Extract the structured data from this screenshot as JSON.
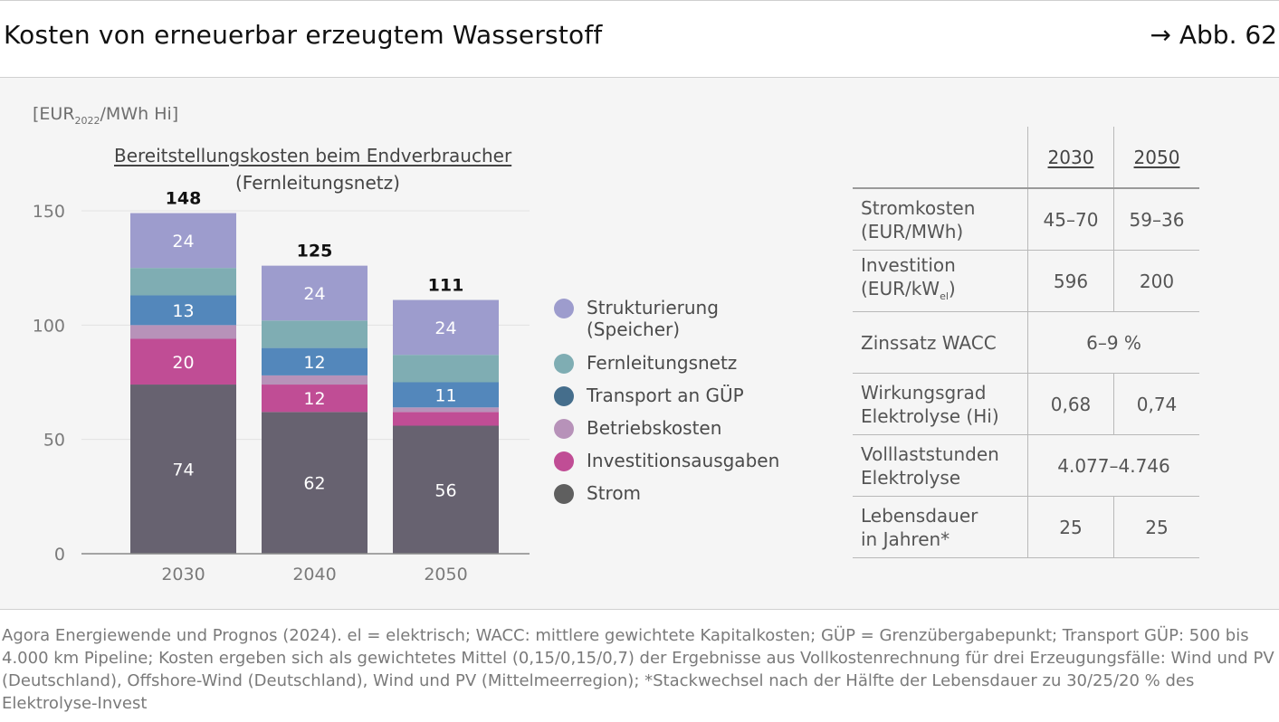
{
  "header": {
    "title": "Kosten von erneuerbar erzeugtem Wasserstoff",
    "figure_ref": "→ Abb. 62"
  },
  "unit": {
    "prefix": "[EUR",
    "sub": "2022",
    "suffix": "/MWh Hi]"
  },
  "chart_data": {
    "type": "bar",
    "stacked": true,
    "title": "Bereitstellungskosten beim Endverbraucher",
    "subtitle": "(Fernleitungsnetz)",
    "ylabel": "[EUR2022/MWh Hi]",
    "ylim": [
      0,
      150
    ],
    "yticks": [
      0,
      50,
      100,
      150
    ],
    "categories": [
      "2030",
      "2040",
      "2050"
    ],
    "totals": [
      "148",
      "125",
      "111"
    ],
    "series": [
      {
        "name": "Strom",
        "color": "#676270",
        "values": [
          74,
          62,
          56
        ],
        "labels": [
          "74",
          "62",
          "56"
        ]
      },
      {
        "name": "Investitionsausgaben",
        "color": "#c04d95",
        "values": [
          20,
          12,
          6
        ],
        "labels": [
          "20",
          "12",
          ""
        ]
      },
      {
        "name": "Betriebskosten",
        "color": "#b792b9",
        "values": [
          6,
          4,
          2
        ],
        "labels": [
          "",
          "",
          ""
        ]
      },
      {
        "name": "Transport an GÜP",
        "color": "#5387bb",
        "values": [
          13,
          12,
          11
        ],
        "labels": [
          "13",
          "12",
          "11"
        ]
      },
      {
        "name": "Fernleitungsnetz",
        "color": "#7fadb3",
        "values": [
          12,
          12,
          12
        ],
        "labels": [
          "",
          "",
          ""
        ]
      },
      {
        "name": "Strukturierung (Speicher)",
        "color": "#9d9ccd",
        "values": [
          24,
          24,
          24
        ],
        "labels": [
          "24",
          "24",
          "24"
        ]
      }
    ]
  },
  "legend": [
    {
      "label": "Strukturierung",
      "label2": "(Speicher)",
      "color": "#9d9ccd"
    },
    {
      "label": "Fernleitungsnetz",
      "color": "#7fadb3"
    },
    {
      "label": "Transport an GÜP",
      "color": "#456e8c"
    },
    {
      "label": "Betriebskosten",
      "color": "#b792b9"
    },
    {
      "label": "Investitionsausgaben",
      "color": "#c04d95"
    },
    {
      "label": "Strom",
      "color": "#5f5f5f"
    }
  ],
  "table": {
    "headers": [
      "2030",
      "2050"
    ],
    "rows": [
      {
        "label": "Stromkosten",
        "label2": "(EUR/MWh)",
        "v1": "45–70",
        "v2": "59–36"
      },
      {
        "label": "Investition",
        "label2_prefix": "(EUR/kW",
        "label2_sub": "el",
        "label2_suffix": ")",
        "v1": "596",
        "v2": "200"
      },
      {
        "label": "Zinssatz WACC",
        "span": "6–9 %"
      },
      {
        "label": "Wirkungsgrad",
        "label2": "Elektrolyse (Hi)",
        "v1": "0,68",
        "v2": "0,74"
      },
      {
        "label": "Volllaststunden",
        "label2": "Elektrolyse",
        "span": "4.077–4.746"
      },
      {
        "label": "Lebensdauer",
        "label2": "in Jahren*",
        "v1": "25",
        "v2": "25"
      }
    ]
  },
  "footnote": "Agora Energiewende und Prognos (2024). el = elektrisch; WACC: mittlere gewichtete Kapitalkosten; GÜP = Grenzübergabepunkt; Transport GÜP: 500 bis 4.000 km Pipeline; Kosten ergeben sich als gewichtetes Mittel (0,15/0,15/0,7) der Ergebnisse aus Vollkostenrechnung für drei Erzeugungsfälle: Wind und PV (Deutschland), Offshore-Wind (Deutschland), Wind und PV (Mittelmeerregion); *Stackwechsel nach der Hälfte der Lebensdauer zu 30/25/20 % des Elektrolyse-Invest"
}
